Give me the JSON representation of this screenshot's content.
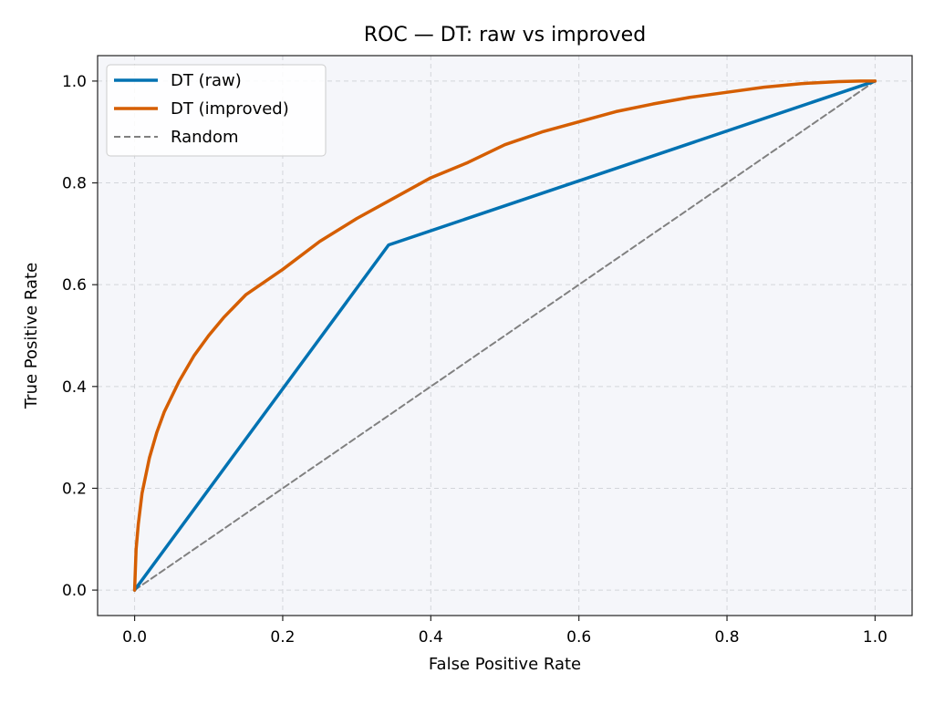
{
  "chart_data": {
    "type": "line",
    "title": "ROC — DT: raw vs improved",
    "xlabel": "False Positive Rate",
    "ylabel": "True Positive Rate",
    "xlim": [
      -0.05,
      1.05
    ],
    "ylim": [
      -0.05,
      1.05
    ],
    "xticks": [
      0.0,
      0.2,
      0.4,
      0.6,
      0.8,
      1.0
    ],
    "yticks": [
      0.0,
      0.2,
      0.4,
      0.6,
      0.8,
      1.0
    ],
    "xtick_labels": [
      "0.0",
      "0.2",
      "0.4",
      "0.6",
      "0.8",
      "1.0"
    ],
    "ytick_labels": [
      "0.0",
      "0.2",
      "0.4",
      "0.6",
      "0.8",
      "1.0"
    ],
    "grid": true,
    "legend_position": "top-left",
    "background_color": "#f5f6fa",
    "series": [
      {
        "name": "DT (raw)",
        "color": "#0072b2",
        "line_style": "solid",
        "x": [
          0.0,
          0.343,
          1.0
        ],
        "y": [
          0.0,
          0.678,
          1.0
        ]
      },
      {
        "name": "DT (improved)",
        "color": "#d55e00",
        "line_style": "solid",
        "x": [
          0.0,
          0.002,
          0.005,
          0.01,
          0.02,
          0.03,
          0.04,
          0.05,
          0.06,
          0.08,
          0.1,
          0.12,
          0.15,
          0.2,
          0.25,
          0.3,
          0.35,
          0.4,
          0.45,
          0.5,
          0.55,
          0.6,
          0.65,
          0.7,
          0.75,
          0.8,
          0.85,
          0.9,
          0.95,
          0.98,
          1.0
        ],
        "y": [
          0.0,
          0.08,
          0.13,
          0.19,
          0.26,
          0.31,
          0.35,
          0.38,
          0.41,
          0.46,
          0.5,
          0.535,
          0.58,
          0.63,
          0.685,
          0.73,
          0.77,
          0.81,
          0.84,
          0.875,
          0.9,
          0.92,
          0.94,
          0.955,
          0.968,
          0.978,
          0.988,
          0.995,
          0.999,
          1.0,
          1.0
        ]
      },
      {
        "name": "Random",
        "color": "#808080",
        "line_style": "dashed",
        "x": [
          0.0,
          1.0
        ],
        "y": [
          0.0,
          1.0
        ]
      }
    ]
  }
}
